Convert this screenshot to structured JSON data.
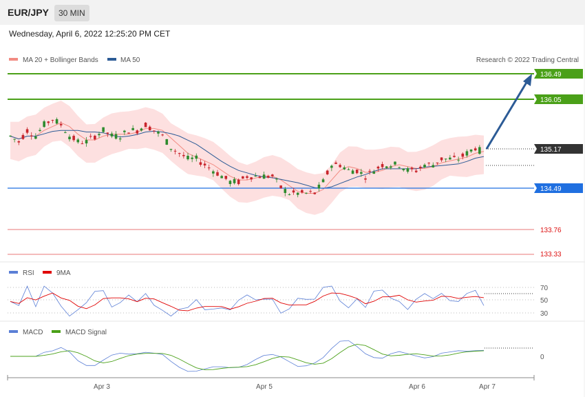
{
  "header": {
    "pair": "EUR/JPY",
    "timeframe": "30 MIN"
  },
  "datetime": "Wednesday, April 6, 2022 12:25:20 PM CET",
  "legend": {
    "main": [
      {
        "label": "MA 20 + Bollinger Bands",
        "color": "#f28b82"
      },
      {
        "label": "MA 50",
        "color": "#2c5b96"
      }
    ],
    "rsi": [
      {
        "label": "RSI",
        "color": "#5b7fd6"
      },
      {
        "label": "9MA",
        "color": "#e00000"
      }
    ],
    "macd": [
      {
        "label": "MACD",
        "color": "#5b7fd6"
      },
      {
        "label": "MACD Signal",
        "color": "#4aa018"
      }
    ]
  },
  "credit": "Research © 2022 Trading Central",
  "colors": {
    "green_level": "#4aa018",
    "blue_level": "#1f6fe0",
    "red_level": "#e04a4a",
    "up_candle": "#2e8b2e",
    "down_candle": "#c8252c",
    "band_fill": "#fde0e0",
    "arrow": "#2c5b96"
  },
  "chart_data": {
    "type": "candlestick",
    "price_axis": {
      "min": 133.2,
      "max": 136.6
    },
    "levels": [
      {
        "value": "136.49",
        "label": "136.49",
        "kind": "resistance"
      },
      {
        "value": "136.05",
        "label": "136.05",
        "kind": "resistance"
      },
      {
        "value": "135.17",
        "label": "135.17",
        "kind": "current"
      },
      {
        "value": "134.49",
        "label": "134.49",
        "kind": "support"
      },
      {
        "value": "133.76",
        "label": "133.76",
        "kind": "support"
      },
      {
        "value": "133.33",
        "label": "133.33",
        "kind": "support"
      }
    ],
    "x_ticks": [
      "Apr 3",
      "Apr 5",
      "Apr 6",
      "Apr 7"
    ],
    "close_series": [
      135.4,
      135.3,
      135.5,
      135.4,
      135.6,
      135.7,
      135.6,
      135.4,
      135.3,
      135.3,
      135.4,
      135.5,
      135.4,
      135.4,
      135.5,
      135.5,
      135.6,
      135.5,
      135.4,
      135.2,
      135.1,
      135.0,
      135.0,
      134.9,
      134.8,
      134.7,
      134.6,
      134.6,
      134.7,
      134.7,
      134.7,
      134.7,
      134.5,
      134.4,
      134.4,
      134.4,
      134.4,
      134.6,
      134.9,
      134.9,
      134.8,
      134.8,
      134.7,
      134.8,
      134.9,
      134.9,
      134.9,
      134.8,
      134.8,
      134.9,
      134.9,
      135.0,
      135.0,
      135.0,
      135.1,
      135.2,
      135.1
    ],
    "rsi": {
      "ticks": [
        "70",
        "50",
        "30"
      ],
      "min": 20,
      "max": 80
    },
    "macd": {
      "ticks": [
        "0"
      ]
    }
  }
}
